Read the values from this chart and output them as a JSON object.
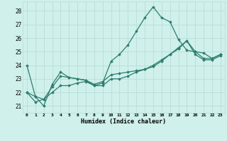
{
  "xlabel": "Humidex (Indice chaleur)",
  "bg_color": "#cff0eb",
  "grid_color": "#b8ddd8",
  "line_color": "#2e7d6e",
  "ylim": [
    20.5,
    28.7
  ],
  "xlim": [
    -0.5,
    23.5
  ],
  "yticks": [
    21,
    22,
    23,
    24,
    25,
    26,
    27,
    28
  ],
  "xticks": [
    0,
    1,
    2,
    3,
    4,
    5,
    6,
    7,
    8,
    9,
    10,
    11,
    12,
    13,
    14,
    15,
    16,
    17,
    18,
    19,
    20,
    21,
    22,
    23
  ],
  "series": [
    [
      24.0,
      21.7,
      21.0,
      22.6,
      23.5,
      23.1,
      23.0,
      22.9,
      22.5,
      22.7,
      24.3,
      24.8,
      25.5,
      26.5,
      27.5,
      28.3,
      27.5,
      27.2,
      25.9,
      25.1,
      25.0,
      24.9,
      24.5,
      24.8
    ],
    [
      22.0,
      21.7,
      21.5,
      22.4,
      23.2,
      23.1,
      23.0,
      22.9,
      22.6,
      22.8,
      23.3,
      23.4,
      23.5,
      23.6,
      23.7,
      23.9,
      24.3,
      24.8,
      25.3,
      25.8,
      25.0,
      24.5,
      24.5,
      24.8
    ],
    [
      22.0,
      21.3,
      21.5,
      22.0,
      22.5,
      22.5,
      22.7,
      22.8,
      22.5,
      22.5,
      23.0,
      23.0,
      23.2,
      23.5,
      23.7,
      24.0,
      24.4,
      24.8,
      25.2,
      25.8,
      24.8,
      24.4,
      24.4,
      24.7
    ]
  ]
}
